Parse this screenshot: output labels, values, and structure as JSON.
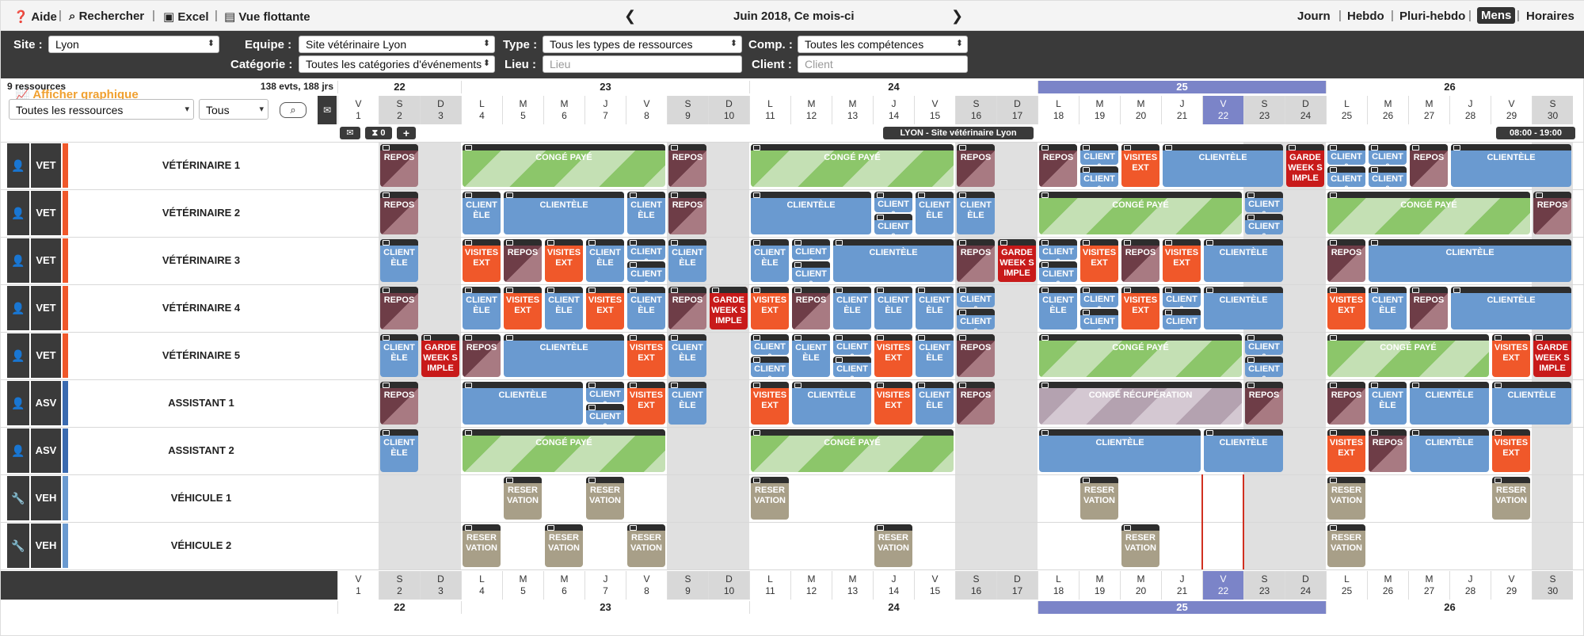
{
  "toolbar": {
    "help": "Aide",
    "search": "Rechercher",
    "excel": "Excel",
    "float": "Vue flottante",
    "period": "Juin 2018, Ce mois-ci",
    "views": [
      "Journ",
      "Hebdo",
      "Pluri-hebdo",
      "Mens",
      "Horaires"
    ],
    "active_view": "Mens"
  },
  "filters": {
    "site_label": "Site :",
    "site_value": "Lyon",
    "team_label": "Equipe :",
    "team_value": "Site vétérinaire Lyon",
    "type_label": "Type :",
    "type_value": "Tous les types de ressources",
    "comp_label": "Comp. :",
    "comp_value": "Toutes les compétences",
    "cat_label": "Catégorie :",
    "cat_value": "Toutes les catégories d'événements",
    "place_label": "Lieu :",
    "place_placeholder": "Lieu",
    "client_label": "Client :",
    "client_placeholder": "Client",
    "graph_label": "Afficher graphique"
  },
  "summary": {
    "resources": "9 ressources",
    "counts": "138 evts, 188 jrs"
  },
  "resource_filter": {
    "value": "Toutes les ressources",
    "second": "Tous"
  },
  "controls": {
    "count": "0",
    "site_banner": "LYON - Site vétérinaire Lyon",
    "hours": "08:00 - 19:00"
  },
  "weeks": [
    {
      "label": "22",
      "start": 0,
      "span": 3
    },
    {
      "label": "23",
      "start": 3,
      "span": 7
    },
    {
      "label": "24",
      "start": 10,
      "span": 7
    },
    {
      "label": "25",
      "start": 17,
      "span": 7,
      "highlight": true
    },
    {
      "label": "26",
      "start": 24,
      "span": 6
    }
  ],
  "days": [
    {
      "l": "V",
      "n": "1"
    },
    {
      "l": "S",
      "n": "2",
      "we": 1
    },
    {
      "l": "D",
      "n": "3",
      "we": 1
    },
    {
      "l": "L",
      "n": "4"
    },
    {
      "l": "M",
      "n": "5"
    },
    {
      "l": "M",
      "n": "6"
    },
    {
      "l": "J",
      "n": "7"
    },
    {
      "l": "V",
      "n": "8"
    },
    {
      "l": "S",
      "n": "9",
      "we": 1
    },
    {
      "l": "D",
      "n": "10",
      "we": 1
    },
    {
      "l": "L",
      "n": "11"
    },
    {
      "l": "M",
      "n": "12"
    },
    {
      "l": "M",
      "n": "13"
    },
    {
      "l": "J",
      "n": "14"
    },
    {
      "l": "V",
      "n": "15"
    },
    {
      "l": "S",
      "n": "16",
      "we": 1
    },
    {
      "l": "D",
      "n": "17",
      "we": 1
    },
    {
      "l": "L",
      "n": "18"
    },
    {
      "l": "M",
      "n": "19"
    },
    {
      "l": "M",
      "n": "20"
    },
    {
      "l": "J",
      "n": "21"
    },
    {
      "l": "V",
      "n": "22",
      "today": 1
    },
    {
      "l": "S",
      "n": "23",
      "we": 1
    },
    {
      "l": "D",
      "n": "24",
      "we": 1
    },
    {
      "l": "L",
      "n": "25"
    },
    {
      "l": "M",
      "n": "26"
    },
    {
      "l": "M",
      "n": "27"
    },
    {
      "l": "J",
      "n": "28"
    },
    {
      "l": "V",
      "n": "29"
    },
    {
      "l": "S",
      "n": "30",
      "we": 1
    }
  ],
  "resources": [
    {
      "name": "VÉTÉRINAIRE 1",
      "type": "VET",
      "icon": "person",
      "color": "#f0582a"
    },
    {
      "name": "VÉTÉRINAIRE 2",
      "type": "VET",
      "icon": "person",
      "color": "#f0582a"
    },
    {
      "name": "VÉTÉRINAIRE 3",
      "type": "VET",
      "icon": "person",
      "color": "#f0582a"
    },
    {
      "name": "VÉTÉRINAIRE 4",
      "type": "VET",
      "icon": "person",
      "color": "#f0582a"
    },
    {
      "name": "VÉTÉRINAIRE 5",
      "type": "VET",
      "icon": "person",
      "color": "#f0582a"
    },
    {
      "name": "ASSISTANT 1",
      "type": "ASV",
      "icon": "person",
      "color": "#3a6ab0"
    },
    {
      "name": "ASSISTANT 2",
      "type": "ASV",
      "icon": "person",
      "color": "#3a6ab0"
    },
    {
      "name": "VÉHICULE 1",
      "type": "VEH",
      "icon": "wrench",
      "color": "#6a9ad0"
    },
    {
      "name": "VÉHICULE 2",
      "type": "VEH",
      "icon": "wrench",
      "color": "#6a9ad0"
    }
  ],
  "events": [
    [
      {
        "d": 1,
        "s": 1,
        "t": "REPOS",
        "c": "rep"
      },
      {
        "d": 3,
        "s": 5,
        "t": "CONGÉ PAYÉ",
        "c": "cp"
      },
      {
        "d": 8,
        "s": 1,
        "t": "REPOS",
        "c": "rep"
      },
      {
        "d": 10,
        "s": 5,
        "t": "CONGÉ PAYÉ",
        "c": "cp"
      },
      {
        "d": 15,
        "s": 1,
        "t": "REPOS",
        "c": "rep"
      },
      {
        "d": 17,
        "s": 1,
        "t": "REPOS",
        "c": "rep"
      },
      {
        "d": 18,
        "s": 1,
        "t": "CLIENT&",
        "c": "cli",
        "h": "top"
      },
      {
        "d": 18,
        "s": 1,
        "t": "CLIENT&",
        "c": "cli",
        "h": "bot"
      },
      {
        "d": 19,
        "s": 1,
        "t": "VISITES EXT",
        "c": "vis"
      },
      {
        "d": 20,
        "s": 3,
        "t": "CLIENTÈLE",
        "c": "cli"
      },
      {
        "d": 23,
        "s": 1,
        "t": "GARDE WEEK SIMPLE",
        "c": "gar"
      },
      {
        "d": 24,
        "s": 1,
        "t": "CLIENT&",
        "c": "cli",
        "h": "top"
      },
      {
        "d": 24,
        "s": 1,
        "t": "CLIENT&",
        "c": "cli",
        "h": "bot"
      },
      {
        "d": 25,
        "s": 1,
        "t": "CLIENT&",
        "c": "cli",
        "h": "top"
      },
      {
        "d": 25,
        "s": 1,
        "t": "CLIENT&",
        "c": "cli",
        "h": "bot"
      },
      {
        "d": 26,
        "s": 1,
        "t": "REPOS",
        "c": "rep"
      },
      {
        "d": 27,
        "s": 3,
        "t": "CLIENTÈLE",
        "c": "cli"
      }
    ],
    [
      {
        "d": 1,
        "s": 1,
        "t": "REPOS",
        "c": "rep"
      },
      {
        "d": 3,
        "s": 1,
        "t": "CLIENTÈLE",
        "c": "cli"
      },
      {
        "d": 4,
        "s": 3,
        "t": "CLIENTÈLE",
        "c": "cli"
      },
      {
        "d": 7,
        "s": 1,
        "t": "CLIENTÈLE",
        "c": "cli"
      },
      {
        "d": 8,
        "s": 1,
        "t": "REPOS",
        "c": "rep"
      },
      {
        "d": 10,
        "s": 3,
        "t": "CLIENTÈLE",
        "c": "cli"
      },
      {
        "d": 13,
        "s": 1,
        "t": "CLIENT&",
        "c": "cli",
        "h": "top"
      },
      {
        "d": 13,
        "s": 1,
        "t": "CLIENT&",
        "c": "cli",
        "h": "bot"
      },
      {
        "d": 14,
        "s": 1,
        "t": "CLIENTÈLE",
        "c": "cli"
      },
      {
        "d": 15,
        "s": 1,
        "t": "CLIENTÈLE",
        "c": "cli"
      },
      {
        "d": 17,
        "s": 5,
        "t": "CONGÉ PAYÉ",
        "c": "cp"
      },
      {
        "d": 22,
        "s": 1,
        "t": "CLIENT&",
        "c": "cli",
        "h": "top"
      },
      {
        "d": 22,
        "s": 1,
        "t": "CLIENT&",
        "c": "cli",
        "h": "bot"
      },
      {
        "d": 24,
        "s": 5,
        "t": "CONGÉ PAYÉ",
        "c": "cp"
      },
      {
        "d": 29,
        "s": 1,
        "t": "REPOS",
        "c": "rep"
      }
    ],
    [
      {
        "d": 1,
        "s": 1,
        "t": "CLIENTÈLE",
        "c": "cli"
      },
      {
        "d": 3,
        "s": 1,
        "t": "VISITES EXT",
        "c": "vis"
      },
      {
        "d": 4,
        "s": 1,
        "t": "REPOS",
        "c": "rep"
      },
      {
        "d": 5,
        "s": 1,
        "t": "VISITES EXT",
        "c": "vis"
      },
      {
        "d": 6,
        "s": 1,
        "t": "CLIENTÈLE",
        "c": "cli"
      },
      {
        "d": 7,
        "s": 1,
        "t": "CLIENT&",
        "c": "cli",
        "h": "top"
      },
      {
        "d": 7,
        "s": 1,
        "t": "CLIENT&",
        "c": "cli",
        "h": "bot"
      },
      {
        "d": 8,
        "s": 1,
        "t": "CLIENTÈLE",
        "c": "cli"
      },
      {
        "d": 10,
        "s": 1,
        "t": "CLIENTÈLE",
        "c": "cli"
      },
      {
        "d": 11,
        "s": 1,
        "t": "CLIENT&",
        "c": "cli",
        "h": "top"
      },
      {
        "d": 11,
        "s": 1,
        "t": "CLIENT&",
        "c": "cli",
        "h": "bot"
      },
      {
        "d": 12,
        "s": 3,
        "t": "CLIENTÈLE",
        "c": "cli"
      },
      {
        "d": 15,
        "s": 1,
        "t": "REPOS",
        "c": "rep"
      },
      {
        "d": 16,
        "s": 1,
        "t": "GARDE WEEK SIMPLE",
        "c": "gar"
      },
      {
        "d": 17,
        "s": 1,
        "t": "CLIENT&",
        "c": "cli",
        "h": "top"
      },
      {
        "d": 17,
        "s": 1,
        "t": "CLIENT&",
        "c": "cli",
        "h": "bot"
      },
      {
        "d": 18,
        "s": 1,
        "t": "VISITES EXT",
        "c": "vis"
      },
      {
        "d": 19,
        "s": 1,
        "t": "REPOS",
        "c": "rep"
      },
      {
        "d": 20,
        "s": 1,
        "t": "VISITES EXT",
        "c": "vis"
      },
      {
        "d": 21,
        "s": 2,
        "t": "CLIENTÈLE",
        "c": "cli"
      },
      {
        "d": 24,
        "s": 1,
        "t": "REPOS",
        "c": "rep"
      },
      {
        "d": 25,
        "s": 5,
        "t": "CLIENTÈLE",
        "c": "cli"
      }
    ],
    [
      {
        "d": 1,
        "s": 1,
        "t": "REPOS",
        "c": "rep"
      },
      {
        "d": 3,
        "s": 1,
        "t": "CLIENTÈLE",
        "c": "cli"
      },
      {
        "d": 4,
        "s": 1,
        "t": "VISITES EXT",
        "c": "vis"
      },
      {
        "d": 5,
        "s": 1,
        "t": "CLIENTÈLE",
        "c": "cli"
      },
      {
        "d": 6,
        "s": 1,
        "t": "VISITES EXT",
        "c": "vis"
      },
      {
        "d": 7,
        "s": 1,
        "t": "CLIENTÈLE",
        "c": "cli"
      },
      {
        "d": 8,
        "s": 1,
        "t": "REPOS",
        "c": "rep"
      },
      {
        "d": 9,
        "s": 1,
        "t": "GARDE WEEK SIMPLE",
        "c": "gar"
      },
      {
        "d": 10,
        "s": 1,
        "t": "VISITES EXT",
        "c": "vis"
      },
      {
        "d": 11,
        "s": 1,
        "t": "REPOS",
        "c": "rep"
      },
      {
        "d": 12,
        "s": 1,
        "t": "CLIENTÈLE",
        "c": "cli"
      },
      {
        "d": 13,
        "s": 1,
        "t": "CLIENTÈLE",
        "c": "cli"
      },
      {
        "d": 14,
        "s": 1,
        "t": "CLIENTÈLE",
        "c": "cli"
      },
      {
        "d": 15,
        "s": 1,
        "t": "CLIENT&",
        "c": "cli",
        "h": "top"
      },
      {
        "d": 15,
        "s": 1,
        "t": "CLIENT&",
        "c": "cli",
        "h": "bot"
      },
      {
        "d": 17,
        "s": 1,
        "t": "CLIENTÈLE",
        "c": "cli"
      },
      {
        "d": 18,
        "s": 1,
        "t": "CLIENT&",
        "c": "cli",
        "h": "top"
      },
      {
        "d": 18,
        "s": 1,
        "t": "CLIENT&",
        "c": "cli",
        "h": "bot"
      },
      {
        "d": 19,
        "s": 1,
        "t": "VISITES EXT",
        "c": "vis"
      },
      {
        "d": 20,
        "s": 1,
        "t": "CLIENT&",
        "c": "cli",
        "h": "top"
      },
      {
        "d": 20,
        "s": 1,
        "t": "CLIENT&",
        "c": "cli",
        "h": "bot"
      },
      {
        "d": 21,
        "s": 2,
        "t": "CLIENTÈLE",
        "c": "cli"
      },
      {
        "d": 24,
        "s": 1,
        "t": "VISITES EXT",
        "c": "vis"
      },
      {
        "d": 25,
        "s": 1,
        "t": "CLIENTÈLE",
        "c": "cli"
      },
      {
        "d": 26,
        "s": 1,
        "t": "REPOS",
        "c": "rep"
      },
      {
        "d": 27,
        "s": 3,
        "t": "CLIENTÈLE",
        "c": "cli"
      }
    ],
    [
      {
        "d": 1,
        "s": 1,
        "t": "CLIENTÈLE",
        "c": "cli"
      },
      {
        "d": 2,
        "s": 1,
        "t": "GARDE WEEK SIMPLE",
        "c": "gar"
      },
      {
        "d": 3,
        "s": 1,
        "t": "REPOS",
        "c": "rep"
      },
      {
        "d": 4,
        "s": 3,
        "t": "CLIENTÈLE",
        "c": "cli"
      },
      {
        "d": 7,
        "s": 1,
        "t": "VISITES EXT",
        "c": "vis"
      },
      {
        "d": 8,
        "s": 1,
        "t": "CLIENTÈLE",
        "c": "cli"
      },
      {
        "d": 10,
        "s": 1,
        "t": "CLIENT&",
        "c": "cli",
        "h": "top"
      },
      {
        "d": 10,
        "s": 1,
        "t": "CLIENT&",
        "c": "cli",
        "h": "bot"
      },
      {
        "d": 11,
        "s": 1,
        "t": "CLIENTÈLE",
        "c": "cli"
      },
      {
        "d": 12,
        "s": 1,
        "t": "CLIENT&",
        "c": "cli",
        "h": "top"
      },
      {
        "d": 12,
        "s": 1,
        "t": "CLIENT&",
        "c": "cli",
        "h": "bot"
      },
      {
        "d": 13,
        "s": 1,
        "t": "VISITES EXT",
        "c": "vis"
      },
      {
        "d": 14,
        "s": 1,
        "t": "CLIENTÈLE",
        "c": "cli"
      },
      {
        "d": 15,
        "s": 1,
        "t": "REPOS",
        "c": "rep"
      },
      {
        "d": 17,
        "s": 5,
        "t": "CONGÉ PAYÉ",
        "c": "cp"
      },
      {
        "d": 22,
        "s": 1,
        "t": "CLIENT&",
        "c": "cli",
        "h": "top"
      },
      {
        "d": 22,
        "s": 1,
        "t": "CLIENT&",
        "c": "cli",
        "h": "bot"
      },
      {
        "d": 24,
        "s": 4,
        "t": "CONGÉ PAYÉ",
        "c": "cp"
      },
      {
        "d": 28,
        "s": 1,
        "t": "VISITES EXT",
        "c": "vis"
      },
      {
        "d": 29,
        "s": 1,
        "t": "GARDE WEEK SIMPLE",
        "c": "gar"
      }
    ],
    [
      {
        "d": 1,
        "s": 1,
        "t": "REPOS",
        "c": "rep"
      },
      {
        "d": 3,
        "s": 3,
        "t": "CLIENTÈLE",
        "c": "cli"
      },
      {
        "d": 6,
        "s": 1,
        "t": "CLIENT&",
        "c": "cli",
        "h": "top"
      },
      {
        "d": 6,
        "s": 1,
        "t": "CLIENT&",
        "c": "cli",
        "h": "bot"
      },
      {
        "d": 7,
        "s": 1,
        "t": "VISITES EXT",
        "c": "vis"
      },
      {
        "d": 8,
        "s": 1,
        "t": "CLIENTÈLE",
        "c": "cli"
      },
      {
        "d": 10,
        "s": 1,
        "t": "VISITES EXT",
        "c": "vis"
      },
      {
        "d": 11,
        "s": 2,
        "t": "CLIENTÈLE",
        "c": "cli"
      },
      {
        "d": 13,
        "s": 1,
        "t": "VISITES EXT",
        "c": "vis"
      },
      {
        "d": 14,
        "s": 1,
        "t": "CLIENTÈLE",
        "c": "cli"
      },
      {
        "d": 15,
        "s": 1,
        "t": "REPOS",
        "c": "rep"
      },
      {
        "d": 17,
        "s": 5,
        "t": "CONGÉ RÉCUPÉRATION",
        "c": "cr"
      },
      {
        "d": 22,
        "s": 1,
        "t": "REPOS",
        "c": "rep"
      },
      {
        "d": 24,
        "s": 1,
        "t": "REPOS",
        "c": "rep"
      },
      {
        "d": 25,
        "s": 1,
        "t": "CLIENTÈLE",
        "c": "cli"
      },
      {
        "d": 26,
        "s": 2,
        "t": "CLIENTÈLE",
        "c": "cli"
      },
      {
        "d": 28,
        "s": 2,
        "t": "CLIENTÈLE",
        "c": "cli"
      }
    ],
    [
      {
        "d": 1,
        "s": 1,
        "t": "CLIENTÈLE",
        "c": "cli"
      },
      {
        "d": 3,
        "s": 5,
        "t": "CONGÉ PAYÉ",
        "c": "cp"
      },
      {
        "d": 10,
        "s": 5,
        "t": "CONGÉ PAYÉ",
        "c": "cp"
      },
      {
        "d": 17,
        "s": 4,
        "t": "CLIENTÈLE",
        "c": "cli"
      },
      {
        "d": 21,
        "s": 2,
        "t": "CLIENTÈLE",
        "c": "cli"
      },
      {
        "d": 24,
        "s": 1,
        "t": "VISITES EXT",
        "c": "vis"
      },
      {
        "d": 25,
        "s": 1,
        "t": "REPOS",
        "c": "rep"
      },
      {
        "d": 26,
        "s": 2,
        "t": "CLIENTÈLE",
        "c": "cli"
      },
      {
        "d": 28,
        "s": 1,
        "t": "VISITES EXT",
        "c": "vis"
      }
    ],
    [
      {
        "d": 4,
        "s": 1,
        "t": "RESERVATION",
        "c": "res"
      },
      {
        "d": 6,
        "s": 1,
        "t": "RESERVATION",
        "c": "res"
      },
      {
        "d": 10,
        "s": 1,
        "t": "RESERVATION",
        "c": "res"
      },
      {
        "d": 18,
        "s": 1,
        "t": "RESERVATION",
        "c": "res"
      },
      {
        "d": 24,
        "s": 1,
        "t": "RESERVATION",
        "c": "res"
      },
      {
        "d": 28,
        "s": 1,
        "t": "RESERVATION",
        "c": "res"
      }
    ],
    [
      {
        "d": 3,
        "s": 1,
        "t": "RESERVATION",
        "c": "res"
      },
      {
        "d": 5,
        "s": 1,
        "t": "RESERVATION",
        "c": "res"
      },
      {
        "d": 7,
        "s": 1,
        "t": "RESERVATION",
        "c": "res"
      },
      {
        "d": 13,
        "s": 1,
        "t": "RESERVATION",
        "c": "res"
      },
      {
        "d": 19,
        "s": 1,
        "t": "RESERVATION",
        "c": "res"
      },
      {
        "d": 24,
        "s": 1,
        "t": "RESERVATION",
        "c": "res"
      }
    ]
  ]
}
